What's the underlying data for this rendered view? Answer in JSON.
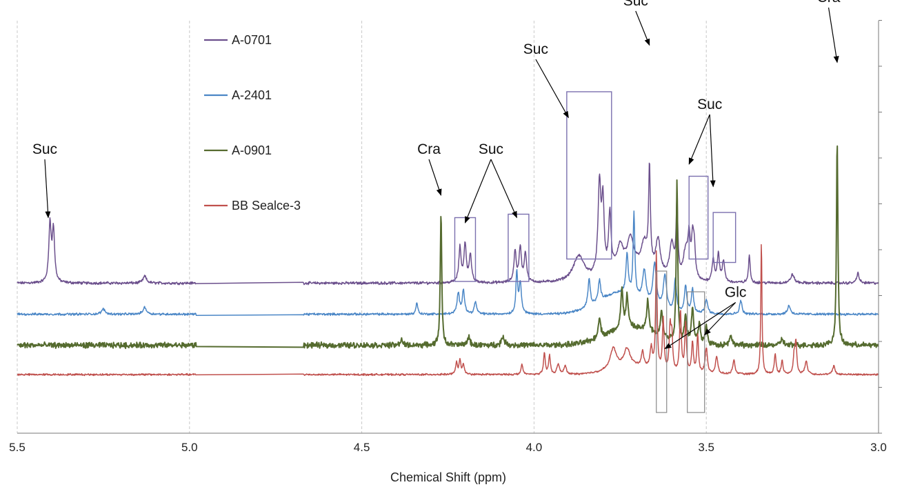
{
  "chart_data": {
    "type": "line",
    "title": "",
    "xlabel": "Chemical Shift (ppm)",
    "ylabel": "",
    "xlim": [
      5.5,
      3.0
    ],
    "x_reversed": true,
    "x_ticks": [
      "5.5",
      "5.0",
      "4.5",
      "4.0",
      "3.5",
      "3.0"
    ],
    "grid": "vertical dashed",
    "legend_position": "top-left",
    "series": [
      {
        "name": "A-0701",
        "color": "#6b4f8c",
        "baseline": 0.87,
        "gap": [
          4.67,
          4.98
        ],
        "peaks": [
          [
            5.405,
            0.34,
            0.004
          ],
          [
            5.395,
            0.3,
            0.004
          ],
          [
            5.13,
            0.04,
            0.006
          ],
          [
            4.215,
            0.2,
            0.004
          ],
          [
            4.2,
            0.22,
            0.004
          ],
          [
            4.185,
            0.16,
            0.004
          ],
          [
            4.055,
            0.18,
            0.004
          ],
          [
            4.04,
            0.2,
            0.004
          ],
          [
            4.025,
            0.17,
            0.004
          ],
          [
            3.87,
            0.15,
            0.02
          ],
          [
            3.81,
            0.52,
            0.005
          ],
          [
            3.8,
            0.39,
            0.004
          ],
          [
            3.78,
            0.33,
            0.004
          ],
          [
            3.75,
            0.12,
            0.01
          ],
          [
            3.72,
            0.15,
            0.01
          ],
          [
            3.68,
            0.14,
            0.01
          ],
          [
            3.665,
            0.58,
            0.003
          ],
          [
            3.64,
            0.2,
            0.008
          ],
          [
            3.6,
            0.2,
            0.008
          ],
          [
            3.585,
            0.44,
            0.003
          ],
          [
            3.56,
            0.16,
            0.008
          ],
          [
            3.55,
            0.22,
            0.004
          ],
          [
            3.54,
            0.2,
            0.004
          ],
          [
            3.535,
            0.17,
            0.004
          ],
          [
            3.48,
            0.13,
            0.004
          ],
          [
            3.465,
            0.16,
            0.004
          ],
          [
            3.45,
            0.12,
            0.004
          ],
          [
            3.375,
            0.16,
            0.003
          ],
          [
            3.25,
            0.05,
            0.006
          ],
          [
            3.06,
            0.06,
            0.004
          ]
        ],
        "noise": 0.012,
        "humps": [
          [
            3.72,
            0.1,
            0.08
          ]
        ]
      },
      {
        "name": "A-2401",
        "color": "#4a86c6",
        "baseline": 0.69,
        "gap": [
          4.67,
          4.98
        ],
        "peaks": [
          [
            5.25,
            0.03,
            0.006
          ],
          [
            5.13,
            0.04,
            0.006
          ],
          [
            4.34,
            0.07,
            0.003
          ],
          [
            4.22,
            0.12,
            0.004
          ],
          [
            4.205,
            0.14,
            0.004
          ],
          [
            4.17,
            0.07,
            0.004
          ],
          [
            4.05,
            0.24,
            0.003
          ],
          [
            4.04,
            0.18,
            0.004
          ],
          [
            3.84,
            0.16,
            0.004
          ],
          [
            3.81,
            0.12,
            0.004
          ],
          [
            3.73,
            0.23,
            0.004
          ],
          [
            3.71,
            0.48,
            0.003
          ],
          [
            3.68,
            0.18,
            0.006
          ],
          [
            3.65,
            0.25,
            0.006
          ],
          [
            3.62,
            0.2,
            0.006
          ],
          [
            3.59,
            0.19,
            0.004
          ],
          [
            3.56,
            0.16,
            0.004
          ],
          [
            3.54,
            0.14,
            0.004
          ],
          [
            3.5,
            0.08,
            0.005
          ],
          [
            3.4,
            0.08,
            0.004
          ],
          [
            3.26,
            0.05,
            0.005
          ]
        ],
        "noise": 0.01,
        "humps": [
          [
            3.75,
            0.12,
            0.09
          ]
        ]
      },
      {
        "name": "A-0901",
        "color": "#556b2f",
        "baseline": 0.51,
        "gap": [
          4.67,
          4.98
        ],
        "peaks": [
          [
            4.385,
            0.04,
            0.003
          ],
          [
            4.27,
            0.78,
            0.0025
          ],
          [
            4.19,
            0.05,
            0.004
          ],
          [
            4.09,
            0.05,
            0.005
          ],
          [
            3.81,
            0.12,
            0.004
          ],
          [
            3.745,
            0.22,
            0.004
          ],
          [
            3.73,
            0.18,
            0.004
          ],
          [
            3.67,
            0.18,
            0.004
          ],
          [
            3.63,
            0.16,
            0.004
          ],
          [
            3.585,
            0.95,
            0.0025
          ],
          [
            3.56,
            0.16,
            0.004
          ],
          [
            3.54,
            0.2,
            0.004
          ],
          [
            3.52,
            0.12,
            0.004
          ],
          [
            3.5,
            0.1,
            0.004
          ],
          [
            3.43,
            0.06,
            0.004
          ],
          [
            3.12,
            1.2,
            0.0025
          ],
          [
            3.28,
            0.04,
            0.004
          ]
        ],
        "noise": 0.024,
        "humps": [
          [
            3.72,
            0.1,
            0.1
          ]
        ]
      },
      {
        "name": "BB Sealce-3",
        "color": "#c0504d",
        "baseline": 0.34,
        "gap": [
          4.67,
          4.98
        ],
        "peaks": [
          [
            4.225,
            0.07,
            0.003
          ],
          [
            4.215,
            0.08,
            0.003
          ],
          [
            4.205,
            0.06,
            0.003
          ],
          [
            4.035,
            0.06,
            0.003
          ],
          [
            3.97,
            0.12,
            0.003
          ],
          [
            3.955,
            0.11,
            0.003
          ],
          [
            3.93,
            0.06,
            0.004
          ],
          [
            3.91,
            0.05,
            0.004
          ],
          [
            3.77,
            0.12,
            0.01
          ],
          [
            3.73,
            0.1,
            0.01
          ],
          [
            3.685,
            0.09,
            0.004
          ],
          [
            3.66,
            0.12,
            0.004
          ],
          [
            3.645,
            0.68,
            0.0025
          ],
          [
            3.625,
            0.3,
            0.003
          ],
          [
            3.605,
            0.25,
            0.003
          ],
          [
            3.6,
            0.2,
            0.003
          ],
          [
            3.575,
            0.36,
            0.003
          ],
          [
            3.56,
            0.28,
            0.003
          ],
          [
            3.54,
            0.18,
            0.003
          ],
          [
            3.525,
            0.22,
            0.003
          ],
          [
            3.5,
            0.15,
            0.004
          ],
          [
            3.47,
            0.1,
            0.004
          ],
          [
            3.42,
            0.08,
            0.004
          ],
          [
            3.34,
            0.78,
            0.002
          ],
          [
            3.3,
            0.12,
            0.003
          ],
          [
            3.28,
            0.08,
            0.003
          ],
          [
            3.245,
            0.1,
            0.003
          ],
          [
            3.24,
            0.18,
            0.003
          ],
          [
            3.21,
            0.08,
            0.004
          ],
          [
            3.13,
            0.05,
            0.004
          ]
        ],
        "noise": 0.008,
        "humps": [
          [
            3.72,
            0.05,
            0.08
          ]
        ]
      }
    ],
    "annotations": [
      {
        "label": "Suc",
        "text_at": [
          5.42,
          1.62
        ],
        "arrows_to": [
          [
            5.41,
            1.25
          ]
        ]
      },
      {
        "label": "Cra",
        "text_at": [
          4.305,
          1.62
        ],
        "arrows_to": [
          [
            4.27,
            1.38
          ]
        ]
      },
      {
        "label": "Suc",
        "text_at": [
          4.125,
          1.62
        ],
        "arrows_to": [
          [
            4.2,
            1.22
          ],
          [
            4.05,
            1.25
          ]
        ]
      },
      {
        "label": "Suc",
        "text_at": [
          3.995,
          2.2
        ],
        "arrows_to": [
          [
            3.9,
            1.83
          ]
        ]
      },
      {
        "label": "Suc",
        "text_at": [
          3.705,
          2.48
        ],
        "arrows_to": [
          [
            3.665,
            2.25
          ]
        ]
      },
      {
        "label": "Suc",
        "text_at": [
          3.49,
          1.88
        ],
        "arrows_to": [
          [
            3.55,
            1.56
          ],
          [
            3.48,
            1.43
          ]
        ]
      },
      {
        "label": "Cra",
        "text_at": [
          3.145,
          2.5
        ],
        "arrows_to": [
          [
            3.12,
            2.15
          ]
        ]
      },
      {
        "label": "Glc",
        "text_at": [
          3.415,
          0.79
        ],
        "arrows_to": [
          [
            3.62,
            0.49
          ],
          [
            3.505,
            0.57
          ]
        ]
      }
    ],
    "boxes": [
      {
        "x": [
          4.23,
          4.17
        ],
        "y": [
          0.88,
          1.25
        ],
        "kind": "suc"
      },
      {
        "x": [
          4.075,
          4.015
        ],
        "y": [
          0.88,
          1.27
        ],
        "kind": "suc"
      },
      {
        "x": [
          3.905,
          3.775
        ],
        "y": [
          1.01,
          1.98
        ],
        "kind": "suc"
      },
      {
        "x": [
          3.55,
          3.495
        ],
        "y": [
          1.01,
          1.49
        ],
        "kind": "suc"
      },
      {
        "x": [
          3.48,
          3.415
        ],
        "y": [
          0.99,
          1.28
        ],
        "kind": "suc"
      },
      {
        "x": [
          3.645,
          3.615
        ],
        "y": [
          0.12,
          0.94
        ],
        "kind": "glc"
      },
      {
        "x": [
          3.555,
          3.505
        ],
        "y": [
          0.12,
          0.82
        ],
        "kind": "glc"
      }
    ]
  }
}
